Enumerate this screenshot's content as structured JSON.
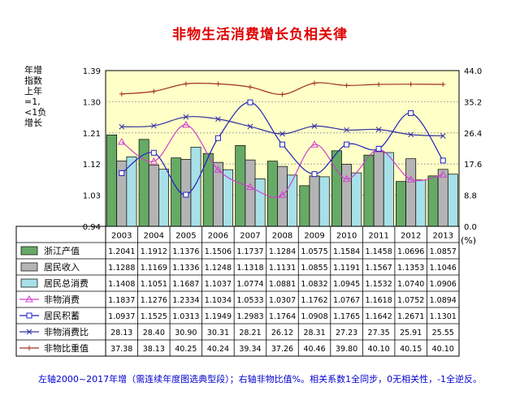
{
  "title": "非物生活消费增长负相关律",
  "left_axis_label": "年增\n指数\n上年\n=1,\n<1负\n增长",
  "right_axis_unit": "(%)",
  "footnote": "左轴2000~2017年增（需连续年度图选典型段）；右轴非物比值%。相关系数1全同步，0无相关性，-1全逆反。",
  "colors": {
    "plot_bg": "#ffffc8",
    "bar_zhejiang": "#66aa66",
    "bar_income": "#b4b4b4",
    "bar_consumption": "#a8e0e8",
    "line_nonmaterial_consumption": "#d040d0",
    "line_savings": "#2020c0",
    "line_ratio": "#3030a0",
    "line_weight": "#a03020"
  },
  "chart_data": {
    "type": "bar",
    "categories": [
      "2003",
      "2004",
      "2005",
      "2006",
      "2007",
      "2008",
      "2009",
      "2010",
      "2011",
      "2012",
      "2013"
    ],
    "left_axis": {
      "min": 0.94,
      "max": 1.39,
      "ticks": [
        "0.94",
        "1.03",
        "1.12",
        "1.21",
        "1.30",
        "1.39"
      ]
    },
    "right_axis": {
      "min": 0,
      "max": 44,
      "ticks": [
        "0.0",
        "8.8",
        "17.6",
        "26.4",
        "35.2",
        "44.0"
      ]
    },
    "series": [
      {
        "name": "浙江产值",
        "kind": "bar",
        "axis": "left",
        "color": "#66aa66",
        "values": [
          "1.2041",
          "1.1912",
          "1.1376",
          "1.1506",
          "1.1737",
          "1.1284",
          "1.0575",
          "1.1584",
          "1.1458",
          "1.0696",
          "1.0857"
        ]
      },
      {
        "name": "居民收入",
        "kind": "bar",
        "axis": "left",
        "color": "#b4b4b4",
        "values": [
          "1.1288",
          "1.1169",
          "1.1336",
          "1.1248",
          "1.1318",
          "1.1131",
          "1.0855",
          "1.1191",
          "1.1567",
          "1.1353",
          "1.1046"
        ]
      },
      {
        "name": "居民总消费",
        "kind": "bar",
        "axis": "left",
        "color": "#a8e0e8",
        "values": [
          "1.1408",
          "1.1051",
          "1.1687",
          "1.1037",
          "1.0774",
          "1.0881",
          "1.0832",
          "1.0945",
          "1.1532",
          "1.0740",
          "1.0906"
        ]
      },
      {
        "name": "非物消费",
        "kind": "line",
        "axis": "left",
        "marker": "triangle",
        "color": "#d040d0",
        "values": [
          "1.1837",
          "1.1276",
          "1.2334",
          "1.1034",
          "1.0533",
          "1.0307",
          "1.1762",
          "1.0767",
          "1.1618",
          "1.0752",
          "1.0894"
        ]
      },
      {
        "name": "居民积蓄",
        "kind": "line",
        "axis": "left",
        "marker": "square",
        "color": "#2020c0",
        "values": [
          "1.0937",
          "1.1525",
          "1.0313",
          "1.1949",
          "1.2983",
          "1.1764",
          "1.0908",
          "1.1765",
          "1.1642",
          "1.2671",
          "1.1301"
        ]
      },
      {
        "name": "非物消费比",
        "kind": "line",
        "axis": "right",
        "marker": "x",
        "color": "#3030a0",
        "values": [
          "28.13",
          "28.40",
          "30.90",
          "30.31",
          "28.21",
          "26.12",
          "28.31",
          "27.23",
          "27.35",
          "25.91",
          "25.55"
        ]
      },
      {
        "name": "非物比重值",
        "kind": "line",
        "axis": "right",
        "marker": "plus",
        "color": "#a03020",
        "values": [
          "37.38",
          "38.13",
          "40.25",
          "40.24",
          "39.34",
          "37.26",
          "40.46",
          "39.80",
          "40.10",
          "40.15",
          "40.10"
        ]
      }
    ]
  }
}
